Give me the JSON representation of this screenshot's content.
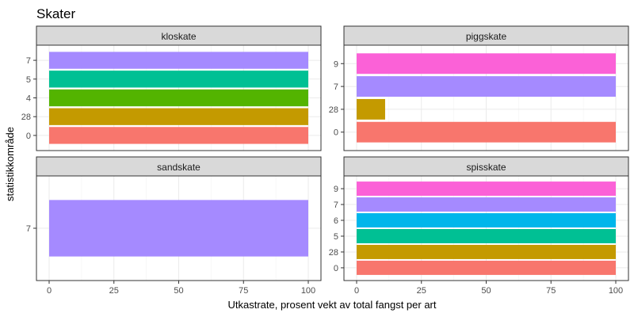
{
  "chart_data": {
    "type": "bar",
    "orientation": "horizontal",
    "faceted": true,
    "title": "Skater",
    "xlabel": "Utkastrate, prosent vekt av total fangst per art",
    "ylabel": "statistikkområde",
    "xlim": [
      0,
      100
    ],
    "x_ticks": [
      "0",
      "25",
      "50",
      "75",
      "100"
    ],
    "grid": true,
    "legend": "none",
    "region_colors": {
      "0": "#F8766D",
      "28": "#C49A00",
      "4": "#53B400",
      "5": "#00C094",
      "6": "#00B6EB",
      "7": "#A58AFF",
      "9": "#FB61D7"
    },
    "panels": [
      {
        "name": "kloskate",
        "categories": [
          "0",
          "28",
          "4",
          "5",
          "7"
        ],
        "values": [
          100,
          100,
          100,
          100,
          100
        ]
      },
      {
        "name": "piggskate",
        "categories": [
          "0",
          "28",
          "7",
          "9"
        ],
        "values": [
          100,
          11,
          100,
          100
        ]
      },
      {
        "name": "sandskate",
        "categories": [
          "7"
        ],
        "values": [
          100
        ]
      },
      {
        "name": "spisskate",
        "categories": [
          "0",
          "28",
          "5",
          "6",
          "7",
          "9"
        ],
        "values": [
          100,
          100,
          100,
          100,
          100,
          100
        ]
      }
    ]
  }
}
